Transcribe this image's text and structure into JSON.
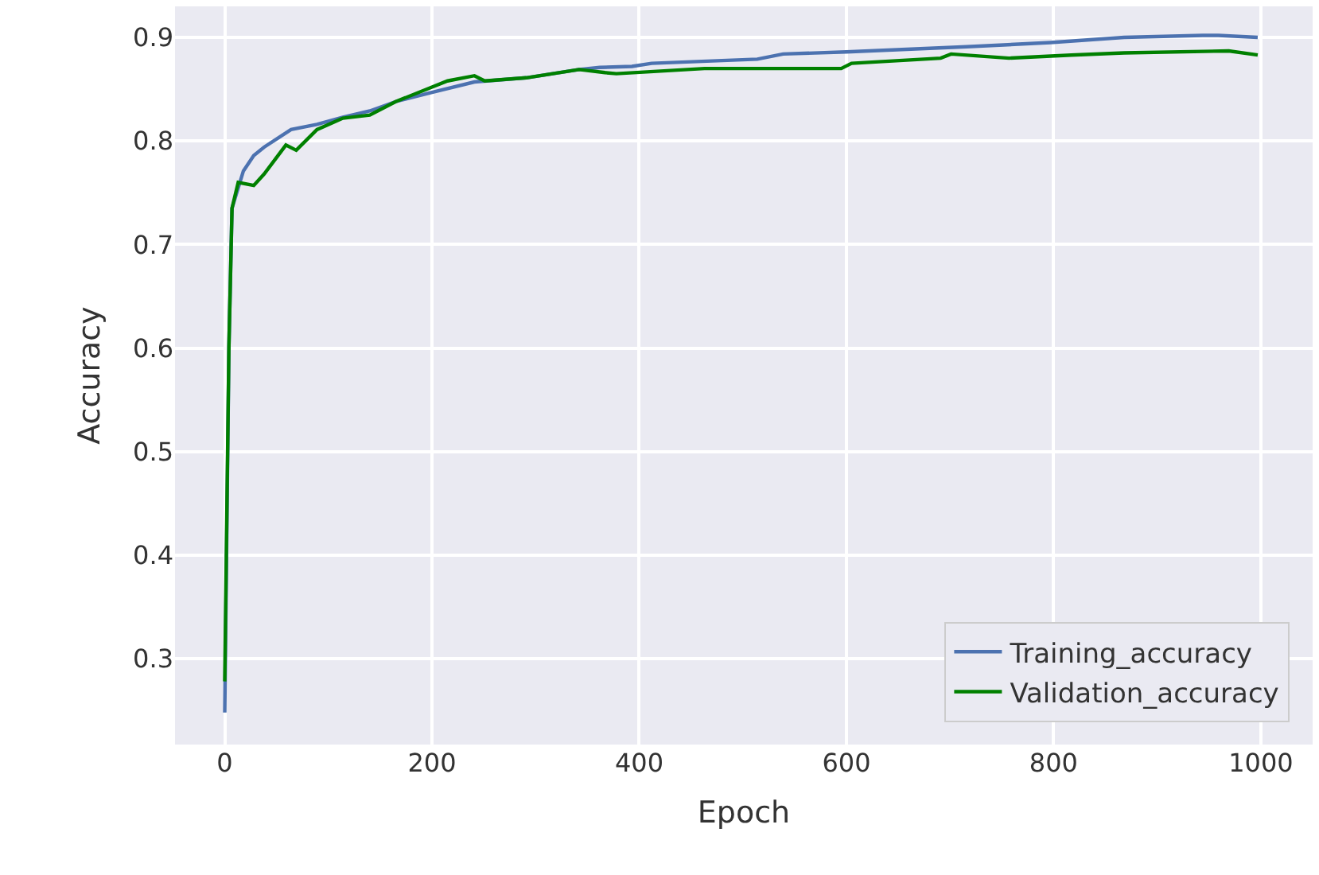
{
  "chart_data": {
    "type": "line",
    "xlabel": "Epoch",
    "ylabel": "Accuracy",
    "xlim": [
      -48,
      1050
    ],
    "ylim": [
      0.217,
      0.93
    ],
    "xticks": [
      0,
      200,
      400,
      600,
      800,
      1000
    ],
    "yticks": [
      0.3,
      0.4,
      0.5,
      0.6,
      0.7,
      0.8,
      0.9
    ],
    "grid": true,
    "legend": "bottom right",
    "line_style": "solid",
    "series": [
      {
        "name": "Training_accuracy",
        "color": "#4c72b0",
        "x": [
          0,
          4,
          7,
          18,
          28,
          38,
          64,
          89,
          114,
          140,
          165,
          200,
          241,
          291,
          342,
          362,
          393,
          412,
          514,
          539,
          600,
          716,
          797,
          868,
          944,
          959,
          997
        ],
        "values": [
          0.248,
          0.6,
          0.735,
          0.771,
          0.786,
          0.794,
          0.811,
          0.816,
          0.823,
          0.829,
          0.838,
          0.847,
          0.857,
          0.861,
          0.869,
          0.871,
          0.872,
          0.875,
          0.879,
          0.884,
          0.886,
          0.891,
          0.895,
          0.9,
          0.902,
          0.902,
          0.9
        ]
      },
      {
        "name": "Validation_accuracy",
        "color": "#008000",
        "x": [
          0,
          4,
          7,
          13,
          28,
          38,
          59,
          69,
          89,
          114,
          140,
          165,
          200,
          215,
          241,
          251,
          291,
          342,
          367,
          378,
          463,
          595,
          605,
          691,
          701,
          757,
          817,
          868,
          969,
          997
        ],
        "values": [
          0.278,
          0.6,
          0.735,
          0.76,
          0.757,
          0.768,
          0.796,
          0.791,
          0.811,
          0.822,
          0.825,
          0.838,
          0.852,
          0.858,
          0.863,
          0.858,
          0.861,
          0.869,
          0.866,
          0.865,
          0.87,
          0.87,
          0.875,
          0.88,
          0.884,
          0.88,
          0.883,
          0.885,
          0.887,
          0.883
        ]
      }
    ]
  }
}
